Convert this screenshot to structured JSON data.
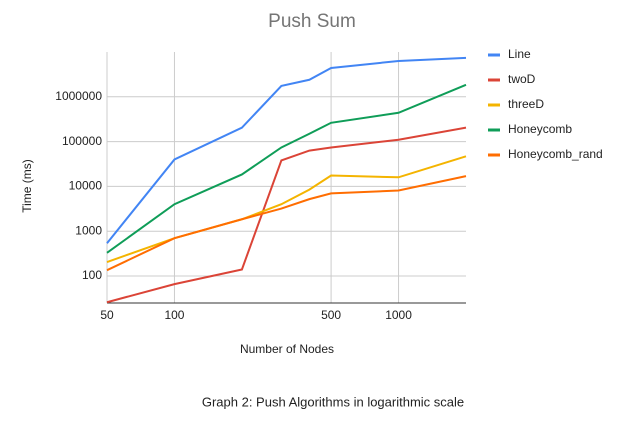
{
  "chart_data": {
    "type": "line",
    "title": "Push Sum",
    "x_label": "Number of Nodes",
    "y_label": "Time (ms)",
    "x": [
      50,
      100,
      200,
      300,
      400,
      500,
      1000,
      2000
    ],
    "x_scale": "log",
    "y_scale": "log",
    "grid": true,
    "legend": "right",
    "xlim": [
      50,
      2000
    ],
    "xticks": [
      50,
      100,
      500,
      1000
    ],
    "ylim": [
      25,
      10000000
    ],
    "yticks": [
      100,
      1000,
      10000,
      100000,
      1000000
    ],
    "series": [
      {
        "name": "Line",
        "color": "#4285f4",
        "values": [
          540,
          40000,
          205000,
          1750000,
          2400000,
          4400000,
          6300000,
          7400000
        ]
      },
      {
        "name": "twoD",
        "color": "#db4437",
        "values": [
          26,
          66,
          140,
          38000,
          63000,
          74000,
          110000,
          205000
        ]
      },
      {
        "name": "threeD",
        "color": "#f4b400",
        "values": [
          205,
          700,
          1850,
          4000,
          8500,
          17500,
          16000,
          47000
        ]
      },
      {
        "name": "Honeycomb",
        "color": "#0f9d58",
        "values": [
          330,
          4000,
          18500,
          74000,
          150000,
          263000,
          440000,
          1850000
        ]
      },
      {
        "name": "Honeycomb_rand",
        "color": "#ff6d01",
        "values": [
          135,
          700,
          1850,
          3200,
          5200,
          7000,
          8100,
          17000
        ]
      }
    ]
  },
  "caption": "Graph 2: Push Algorithms in logarithmic scale"
}
